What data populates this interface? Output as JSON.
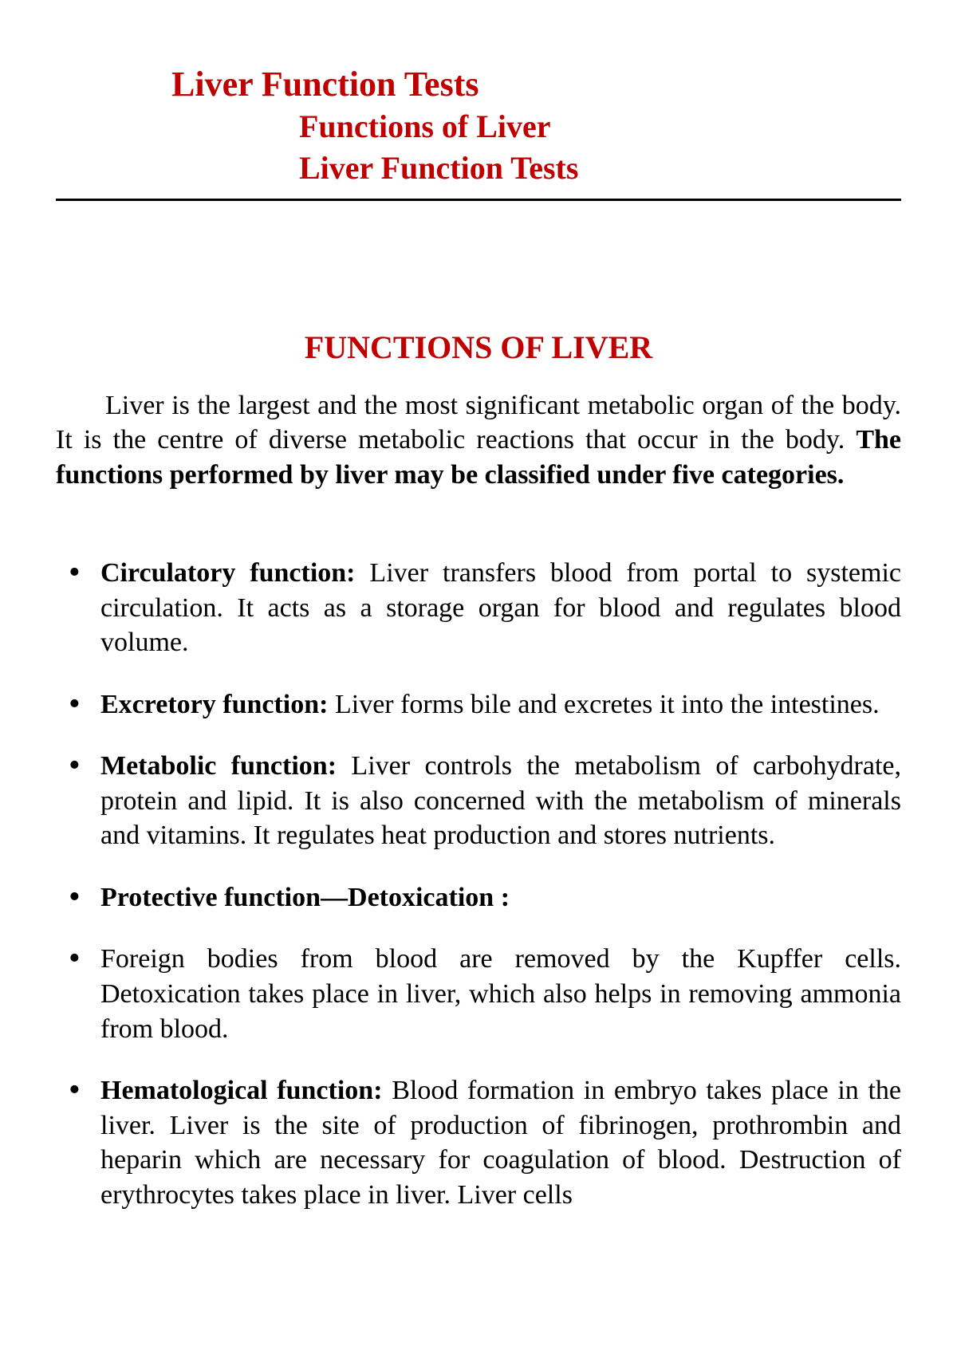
{
  "colors": {
    "accent_red": "#c00000",
    "body_text": "#000000",
    "rule": "#000000",
    "background": "#ffffff"
  },
  "typography": {
    "title_main_pt": 44,
    "subtitle_pt": 40,
    "section_heading_pt": 40,
    "body_pt": 34,
    "font_family": "Times New Roman"
  },
  "header": {
    "title_main": "Liver Function Tests",
    "subtitle_1": "Functions of Liver",
    "subtitle_2": "Liver Function Tests"
  },
  "section_heading": "FUNCTIONS OF LIVER",
  "intro": {
    "lead": "Liver is the largest and the most significant metabolic organ of the body. It is the centre of diverse metabolic reactions that occur in the body. ",
    "bold": "The functions performed by liver may be classified under five categories."
  },
  "functions": [
    {
      "title": "Circulatory function:",
      "body": " Liver transfers blood from portal to systemic circulation. It acts as a storage organ for blood and regulates blood volume."
    },
    {
      "title": "Excretory function:",
      "body": " Liver forms bile and excretes it into the intestines."
    },
    {
      "title": "Metabolic function:",
      "body": " Liver controls the metabolism of carbohydrate, protein and lipid. It is also concerned with the metabolism of minerals and vitamins. It regulates heat production and stores nutrients."
    },
    {
      "title": "Protective function—Detoxication :",
      "body": ""
    },
    {
      "title": "",
      "body": "Foreign bodies from blood are removed by the Kupffer cells. Detoxication takes place in liver, which also helps in removing ammonia from blood."
    },
    {
      "title": "Hematological function:",
      "body": " Blood formation in embryo takes place in the liver. Liver is the site of production of fibrinogen, prothrombin and heparin which are necessary for coagulation of blood. Destruction of erythrocytes takes place in liver. Liver cells"
    }
  ]
}
